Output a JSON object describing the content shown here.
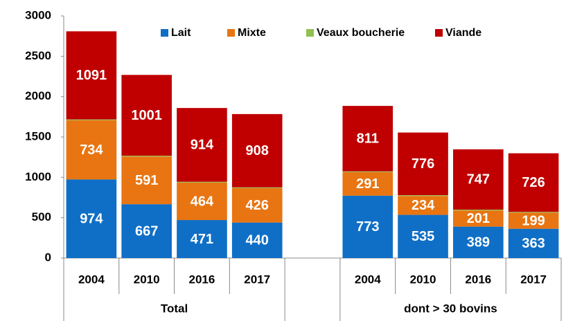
{
  "chart_data": {
    "type": "stacked_bar",
    "categories": [
      "2004",
      "2010",
      "2016",
      "2017",
      null,
      "2004",
      "2010",
      "2016",
      "2017"
    ],
    "groups": [
      "Total",
      "dont > 30 bovins"
    ],
    "series": [
      {
        "name": "Lait",
        "color": "#0f6fc6",
        "values": [
          974,
          667,
          471,
          440,
          null,
          773,
          535,
          389,
          363
        ]
      },
      {
        "name": "Mixte",
        "color": "#e87511",
        "values": [
          734,
          591,
          464,
          426,
          null,
          291,
          234,
          201,
          199
        ]
      },
      {
        "name": "Veaux boucherie",
        "color": "#92c050",
        "values": [
          10,
          10,
          10,
          10,
          null,
          10,
          10,
          10,
          10
        ]
      },
      {
        "name": "Viande",
        "color": "#c00000",
        "values": [
          1091,
          1001,
          914,
          908,
          null,
          811,
          776,
          747,
          726
        ]
      }
    ],
    "ylim": [
      0,
      3000
    ],
    "yticks": [
      0,
      500,
      1000,
      1500,
      2000,
      2500,
      3000
    ],
    "legend": "top"
  }
}
